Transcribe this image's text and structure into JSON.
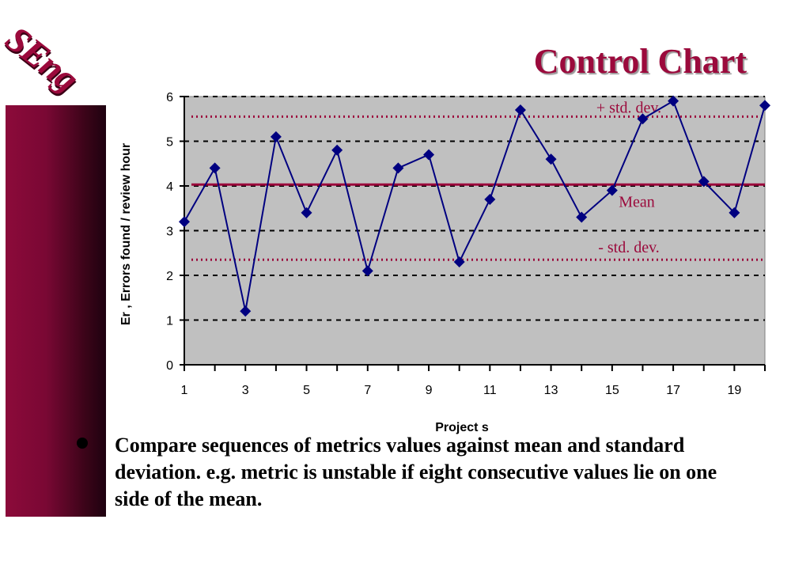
{
  "slide": {
    "logo_text": "SEng",
    "title": "Control Chart",
    "bullet_text": "Compare sequences of metrics values against mean and standard deviation. e.g. metric is unstable if eight consecutive values lie on one side of the mean."
  },
  "colors": {
    "accent": "#9b0a3c",
    "series": "#000080",
    "plot_background": "#c0c0c0"
  },
  "chart_data": {
    "type": "line",
    "title": "",
    "xlabel": "Project  s",
    "ylabel": "Er ,  Errors found /  review hour",
    "x": [
      1,
      2,
      3,
      4,
      5,
      6,
      7,
      8,
      9,
      10,
      11,
      12,
      13,
      14,
      15,
      16,
      17,
      18,
      19,
      20
    ],
    "x_tick_labels": [
      "1",
      "3",
      "5",
      "7",
      "9",
      "11",
      "13",
      "15",
      "17",
      "19"
    ],
    "y_tick_labels": [
      "0",
      "1",
      "2",
      "3",
      "4",
      "5",
      "6"
    ],
    "ylim": [
      0,
      6
    ],
    "xlim": [
      1,
      20
    ],
    "grid": true,
    "series": [
      {
        "values": [
          3.2,
          4.4,
          1.2,
          5.1,
          3.4,
          4.8,
          2.1,
          4.4,
          4.7,
          2.3,
          3.7,
          5.7,
          4.6,
          3.3,
          3.9,
          5.5,
          5.9,
          4.1,
          3.4,
          5.8
        ]
      }
    ],
    "reference_lines": [
      {
        "label": "+ std. dev.",
        "value": 5.55,
        "style": "dotted"
      },
      {
        "label": "Mean",
        "value": 4.03,
        "style": "solid"
      },
      {
        "label": "- std. dev.",
        "value": 2.35,
        "style": "dotted"
      }
    ]
  }
}
